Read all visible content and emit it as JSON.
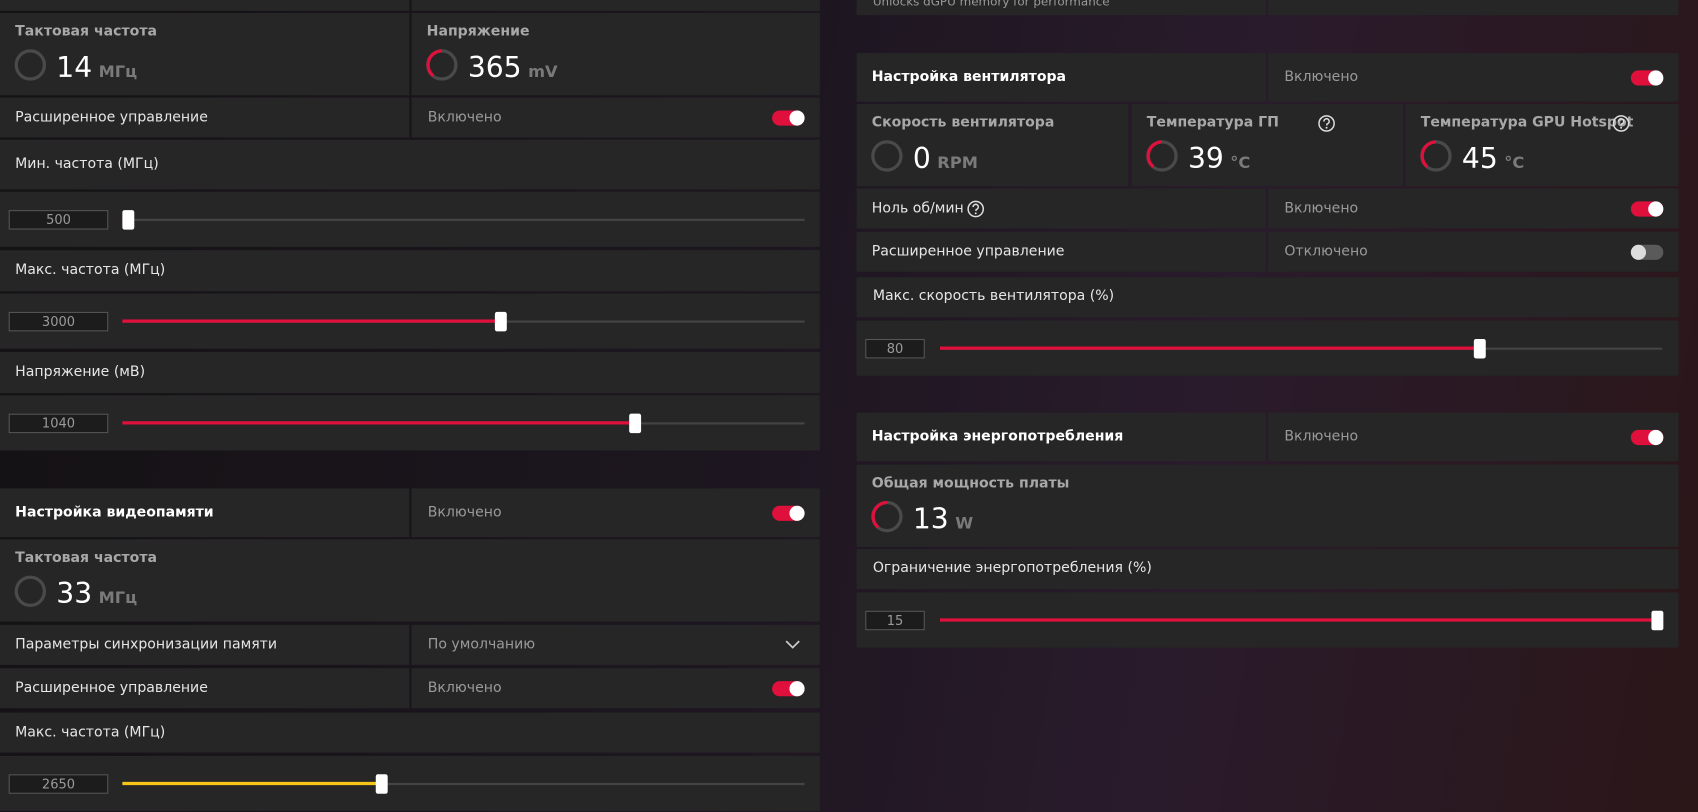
{
  "left": {
    "gpu_stats": [
      {
        "label": "Тактовая частота",
        "value": 14,
        "unit": "МГц"
      },
      {
        "label": "Напряжение",
        "value": 365,
        "unit": "mV"
      }
    ],
    "gpu_advanced": {
      "label": "Расширенное управление",
      "state": "Включено"
    },
    "min_freq": {
      "label": "Мин. частота (МГц)",
      "value": 500
    },
    "max_freq": {
      "label": "Макс. частота (МГц)",
      "value": 3000
    },
    "voltage": {
      "label": "Напряжение (мВ)",
      "value": 1040
    },
    "vram": {
      "title": "Настройка видеопамяти",
      "state": "Включено",
      "clock": {
        "label": "Тактовая частота",
        "value": 33,
        "unit": "МГц"
      },
      "timing": {
        "label": "Параметры синхронизации памяти",
        "value": "По умолчанию"
      },
      "advanced": {
        "label": "Расширенное управление",
        "state": "Включено"
      },
      "max_freq": {
        "label": "Макс. частота (МГц)",
        "value": 2650
      }
    }
  },
  "right": {
    "top_note": "Unlocks dGPU memory for performance",
    "fan": {
      "title": "Настройка вентилятора",
      "state": "Включено",
      "stats": [
        {
          "label": "Скорость вентилятора",
          "value": 0,
          "unit": "RPM"
        },
        {
          "label": "Температура ГП",
          "value": 39,
          "unit": "°C"
        },
        {
          "label": "Температура GPU Hotspot",
          "value": 45,
          "unit": "°C"
        }
      ],
      "zero_rpm": {
        "label": "Ноль об/мин",
        "state": "Включено"
      },
      "advanced": {
        "label": "Расширенное управление",
        "state": "Отключено"
      },
      "max_speed": {
        "label": "Макс. скорость вентилятора (%)",
        "value": 80
      }
    },
    "power": {
      "title": "Настройка энергопотребления",
      "state": "Включено",
      "board_power": {
        "label": "Общая мощность платы",
        "value": 13,
        "unit": "W"
      },
      "limit": {
        "label": "Ограничение энергопотребления (%)",
        "value": 15
      }
    }
  }
}
